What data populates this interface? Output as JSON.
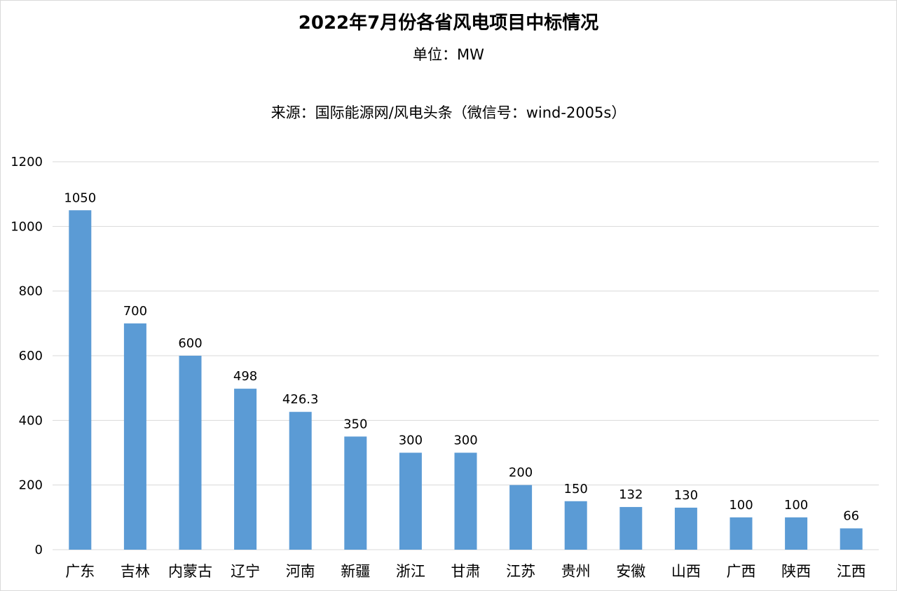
{
  "chart_data": {
    "type": "bar",
    "title": "2022年7月份各省风电项目中标情况",
    "subtitle": "单位：MW",
    "source": "来源：国际能源网/风电头条（微信号：wind-2005s）",
    "categories": [
      "广东",
      "吉林",
      "内蒙古",
      "辽宁",
      "河南",
      "新疆",
      "浙江",
      "甘肃",
      "江苏",
      "贵州",
      "安徽",
      "山西",
      "广西",
      "陕西",
      "江西"
    ],
    "values": [
      1050,
      700,
      600,
      498,
      426.3,
      350,
      300,
      300,
      200,
      150,
      132,
      130,
      100,
      100,
      66
    ],
    "data_labels": [
      "1050",
      "700",
      "600",
      "498",
      "426.3",
      "350",
      "300",
      "300",
      "200",
      "150",
      "132",
      "130",
      "100",
      "100",
      "66"
    ],
    "xlabel": "",
    "ylabel": "",
    "ylim": [
      0,
      1200
    ],
    "yticks": [
      0,
      200,
      400,
      600,
      800,
      1000,
      1200
    ],
    "grid": true,
    "legend": "none",
    "bar_color": "#5b9bd5",
    "grid_color": "#d9d9d9"
  }
}
